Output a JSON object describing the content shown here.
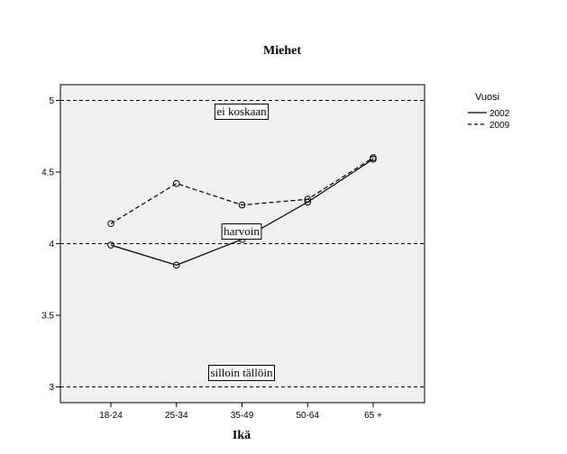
{
  "chart_data": {
    "type": "line",
    "title": "Miehet",
    "xlabel": "Ikä",
    "ylabel": "",
    "categories": [
      "18-24",
      "25-34",
      "35-49",
      "50-64",
      "65 +"
    ],
    "ylim": [
      2.89,
      5.11
    ],
    "yticks": [
      3,
      3.5,
      4,
      4.5,
      5
    ],
    "ytick_labels": [
      "3",
      "3.5",
      "4",
      "4.5",
      "5"
    ],
    "grid": false,
    "background": "#f0f0f0",
    "legend": {
      "title": "Vuosi",
      "position": "top-right",
      "entries": [
        "2002",
        "2009"
      ]
    },
    "series": [
      {
        "name": "2002",
        "style": "solid",
        "values": [
          3.99,
          3.85,
          4.03,
          4.29,
          4.59
        ]
      },
      {
        "name": "2009",
        "style": "dashed",
        "values": [
          4.14,
          4.42,
          4.27,
          4.31,
          4.6
        ]
      }
    ],
    "reference_lines": [
      {
        "y": 5,
        "label": "ei koskaan"
      },
      {
        "y": 4,
        "label": "harvoin"
      },
      {
        "y": 3,
        "label": "silloin tällöin"
      }
    ]
  }
}
